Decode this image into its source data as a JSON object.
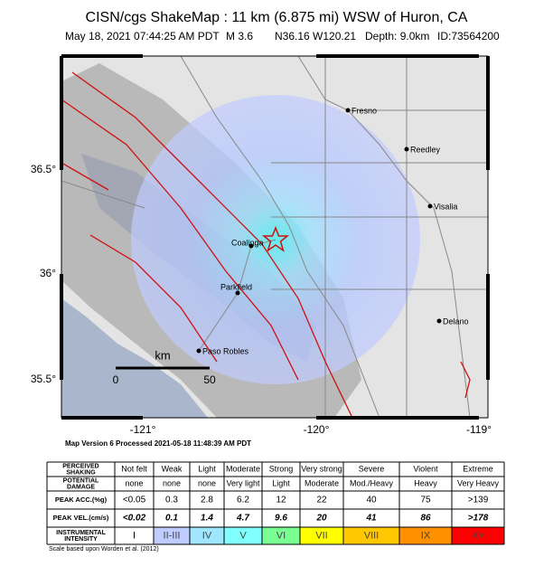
{
  "header": {
    "title": "CISN/cgs ShakeMap : 11 km (6.875 mi) WSW of Huron, CA",
    "subtitle": [
      "May 18, 2021 07:44:25 AM PDT",
      "M 3.6",
      "N36.16 W120.21",
      "Depth: 9.0km",
      "ID:73564200"
    ]
  },
  "map": {
    "lat_labels": [
      "36.5°",
      "36°",
      "35.5°"
    ],
    "lon_labels": [
      "-121°",
      "-120°",
      "-119°"
    ],
    "cities": [
      "Fresno",
      "Reedley",
      "Visalia",
      "Coalinga",
      "Parkfield",
      "Delano",
      "Paso Robles"
    ],
    "scale": {
      "unit": "km",
      "start": "0",
      "end": "50"
    }
  },
  "version": "Map Version 6 Processed 2021-05-18 11:48:39 AM PDT",
  "table": {
    "rows": [
      {
        "label": [
          "PERCEIVED",
          "SHAKING"
        ],
        "cells": [
          "Not felt",
          "Weak",
          "Light",
          "Moderate",
          "Strong",
          "Very strong",
          "Severe",
          "Violent",
          "Extreme"
        ]
      },
      {
        "label": [
          "POTENTIAL",
          "DAMAGE"
        ],
        "cells": [
          "none",
          "none",
          "none",
          "Very light",
          "Light",
          "Moderate",
          "Mod./Heavy",
          "Heavy",
          "Very Heavy"
        ]
      },
      {
        "label": [
          "PEAK ACC.(%g)"
        ],
        "cells": [
          "<0.05",
          "0.3",
          "2.8",
          "6.2",
          "12",
          "22",
          "40",
          "75",
          ">139"
        ]
      },
      {
        "label": [
          "PEAK VEL.(cm/s)"
        ],
        "cells": [
          "<0.02",
          "0.1",
          "1.4",
          "4.7",
          "9.6",
          "20",
          "41",
          "86",
          ">178"
        ]
      },
      {
        "label": [
          "INSTRUMENTAL",
          "INTENSITY"
        ],
        "cells": [
          "I",
          "II-III",
          "IV",
          "V",
          "VI",
          "VII",
          "VIII",
          "IX",
          "X+"
        ]
      }
    ],
    "intensity_colors": [
      "#ffffff",
      "#bfccff",
      "#a0e6ff",
      "#80ffff",
      "#7aff93",
      "#ffff00",
      "#ffc800",
      "#ff9100",
      "#ff0000"
    ]
  },
  "footnote": "Scale based upon Worden et al. (2012)"
}
